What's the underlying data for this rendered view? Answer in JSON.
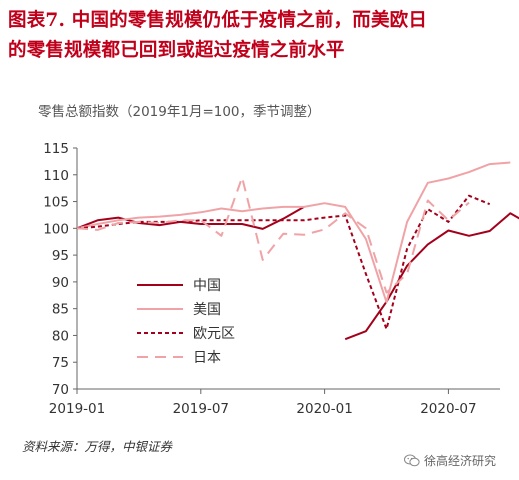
{
  "title": {
    "line1": "图表7.  中国的零售规模仍低于疫情之前，而美欧日",
    "line2": "的零售规模都已回到或超过疫情之前水平"
  },
  "source": "资料来源：万得，中银证券",
  "brand": {
    "name": "徐高经济研究",
    "icon": "wechat-icon"
  },
  "chart_data": {
    "type": "line",
    "title": "",
    "ylabel": "零售总额指数（2019年1月=100，季节调整）",
    "xlabel": "",
    "ylim": [
      70,
      115
    ],
    "yticks": [
      70,
      75,
      80,
      85,
      90,
      95,
      100,
      105,
      110,
      115
    ],
    "xticks": [
      {
        "label": "2019-01",
        "x": 0
      },
      {
        "label": "2019-07",
        "x": 6
      },
      {
        "label": "2020-01",
        "x": 12
      },
      {
        "label": "2020-07",
        "x": 18
      }
    ],
    "x": [
      "2019-01",
      "2019-02",
      "2019-03",
      "2019-04",
      "2019-05",
      "2019-06",
      "2019-07",
      "2019-08",
      "2019-09",
      "2019-10",
      "2019-11",
      "2019-12",
      "2020-01",
      "2020-02",
      "2020-03",
      "2020-04",
      "2020-05",
      "2020-06",
      "2020-07",
      "2020-08",
      "2020-09",
      "2020-10",
      "2020-11",
      "2020-12"
    ],
    "grid": false,
    "legend": "lower-left",
    "series": [
      {
        "name": "中国",
        "color": "#a3001b",
        "dash": "solid",
        "values": [
          100,
          101.5,
          102,
          101,
          100.6,
          101.2,
          100.8,
          100.8,
          100.8,
          99.9,
          101.8,
          104,
          null,
          79.3,
          80.8,
          86.3,
          93,
          97,
          99.6,
          98.6,
          99.5,
          102.8,
          100.6,
          null
        ]
      },
      {
        "name": "美国",
        "color": "#f0a3a6",
        "dash": "solid",
        "values": [
          100,
          100.8,
          101.5,
          102,
          102.2,
          102.5,
          103,
          103.7,
          103.2,
          103.7,
          104,
          104,
          104.7,
          104,
          98,
          86.2,
          101.2,
          108.5,
          109.3,
          110.5,
          112,
          112.3,
          null,
          null
        ]
      },
      {
        "name": "欧元区",
        "color": "#a3001b",
        "dash": "short",
        "values": [
          100,
          100.3,
          100.8,
          101.2,
          101.2,
          101.2,
          101.5,
          101.5,
          101.5,
          101.5,
          101.5,
          101.5,
          102,
          102.4,
          91.5,
          81.2,
          96.2,
          103.6,
          101.2,
          106.1,
          104.5,
          null,
          null,
          null
        ]
      },
      {
        "name": "日本",
        "color": "#f0a3a6",
        "dash": "long",
        "values": [
          100,
          99.7,
          101,
          101.2,
          101,
          101.5,
          101.5,
          98.6,
          109.5,
          94.1,
          99,
          98.8,
          99.8,
          102.8,
          100,
          88,
          91.5,
          105.2,
          101.5,
          104.8,
          null,
          null,
          null,
          null
        ]
      }
    ]
  }
}
